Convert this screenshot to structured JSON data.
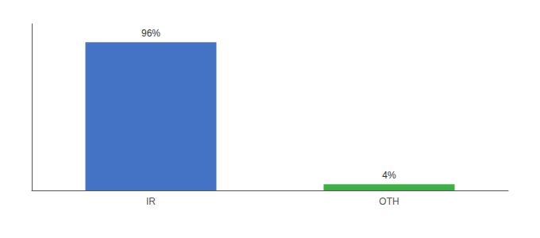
{
  "chart_data": {
    "type": "bar",
    "categories": [
      "IR",
      "OTH"
    ],
    "values": [
      96,
      4
    ],
    "value_labels": [
      "96%",
      "4%"
    ],
    "colors": [
      "#4472c4",
      "#3cb043"
    ],
    "ylim": [
      0,
      108
    ],
    "yticks": [],
    "tick_labels": "x",
    "grid": false,
    "data_labels": true
  }
}
